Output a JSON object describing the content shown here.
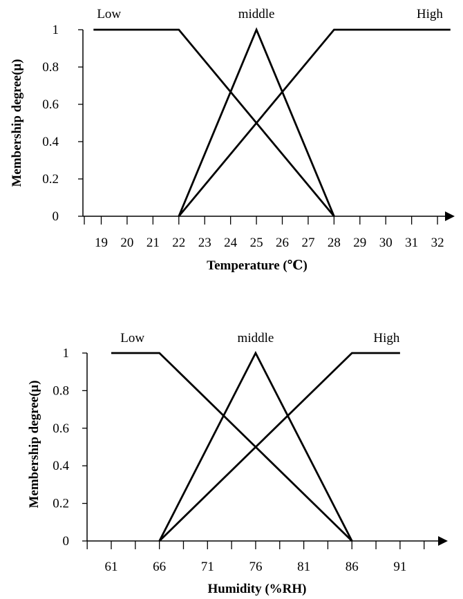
{
  "chart_data": [
    {
      "type": "line",
      "title": "",
      "xlabel": "Temperature (℃)",
      "ylabel": "Membership degree(μ)",
      "x_ticks": [
        19,
        20,
        21,
        22,
        23,
        24,
        25,
        26,
        27,
        28,
        29,
        30,
        31,
        32
      ],
      "y_ticks": [
        "0",
        "0.2",
        "0.4",
        "0.6",
        "0.8",
        "1"
      ],
      "ylim": [
        0,
        1
      ],
      "xlim": [
        18,
        32.5
      ],
      "series": [
        {
          "name": "Low",
          "x": [
            18.7,
            22,
            28
          ],
          "y": [
            1,
            1,
            0
          ]
        },
        {
          "name": "middle",
          "x": [
            22,
            25,
            28
          ],
          "y": [
            0,
            1,
            0
          ]
        },
        {
          "name": "High",
          "x": [
            22,
            28,
            32.5
          ],
          "y": [
            0,
            1,
            1
          ]
        }
      ]
    },
    {
      "type": "line",
      "title": "",
      "xlabel": "Humidity (%RH)",
      "ylabel": "Membership degree(μ)",
      "x_ticks": [
        61,
        66,
        71,
        76,
        81,
        86,
        91
      ],
      "y_ticks": [
        "0",
        "0.2",
        "0.4",
        "0.6",
        "0.8",
        "1"
      ],
      "ylim": [
        0,
        1
      ],
      "xlim": [
        58,
        95
      ],
      "series": [
        {
          "name": "Low",
          "x": [
            61,
            66,
            86
          ],
          "y": [
            1,
            1,
            0
          ]
        },
        {
          "name": "middle",
          "x": [
            66,
            76,
            86
          ],
          "y": [
            0,
            1,
            0
          ]
        },
        {
          "name": "High",
          "x": [
            66,
            86,
            91
          ],
          "y": [
            0,
            1,
            1
          ]
        }
      ]
    }
  ]
}
